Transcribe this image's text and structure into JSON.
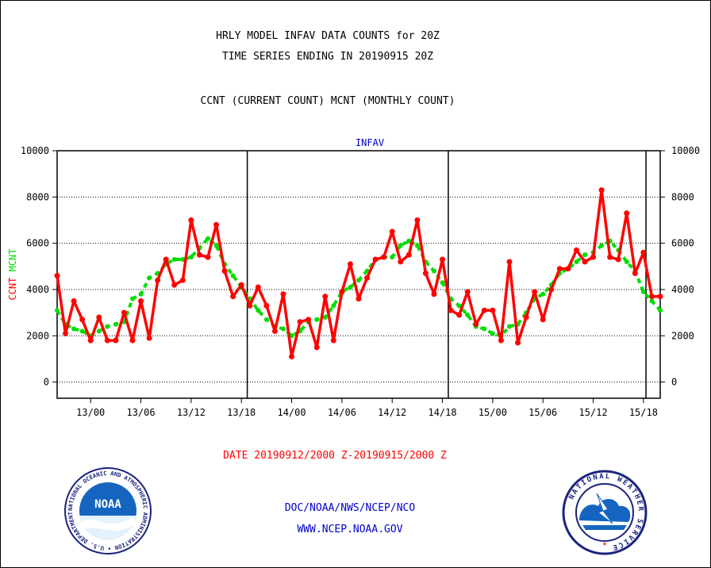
{
  "header": {
    "title_line1": "HRLY MODEL INFAV DATA COUNTS for 20Z",
    "title_line2": "TIME SERIES ENDING IN 20190915 20Z",
    "subtitle": "CCNT (CURRENT COUNT) MCNT (MONTHLY COUNT)"
  },
  "footer": {
    "date_range": "DATE 20190912/2000 Z-20190915/2000 Z",
    "agency": "DOC/NOAA/NWS/NCEP/NCO",
    "website": "WWW.NCEP.NOAA.GOV"
  },
  "logos": {
    "noaa_text": "NOAA",
    "noaa_ring": "NATIONAL OCEANIC AND ATMOSPHERIC ADMINISTRATION • U.S. DEPARTMENT OF COMMERCE •",
    "nws_ring": "NATIONAL WEATHER SERVICE"
  },
  "colors": {
    "ccnt": "#ff0000",
    "mcnt": "#00dd00",
    "title": "#0000cc",
    "date": "#ff0000",
    "footer": "#0000cc"
  },
  "chart_data": {
    "type": "line",
    "title": "INFAV",
    "ylabel_parts": [
      "CCNT",
      "MCNT"
    ],
    "ylim": [
      -700,
      10000
    ],
    "yticks": [
      0,
      2000,
      4000,
      6000,
      8000,
      10000
    ],
    "ytick_labels": [
      "0",
      "2000",
      "4000",
      "6000",
      "8000",
      "10000"
    ],
    "x_start_hour": 20,
    "x_end_hour": 92,
    "xticks": [
      24,
      30,
      36,
      42,
      48,
      54,
      60,
      66,
      72,
      78,
      84,
      90
    ],
    "xtick_labels": [
      "13/00",
      "13/06",
      "13/12",
      "13/18",
      "14/00",
      "14/06",
      "14/12",
      "14/18",
      "15/00",
      "15/06",
      "15/12",
      "15/18"
    ],
    "day_boundaries": [
      42.7,
      66.7,
      90.3
    ],
    "grid": true,
    "series": [
      {
        "name": "CCNT",
        "x": [
          20,
          21,
          22,
          23,
          24,
          25,
          26,
          27,
          28,
          29,
          30,
          31,
          32,
          33,
          34,
          35,
          36,
          37,
          38,
          39,
          40,
          41,
          42,
          43,
          44,
          45,
          46,
          47,
          48,
          49,
          50,
          51,
          52,
          53,
          54,
          55,
          56,
          57,
          58,
          59,
          60,
          61,
          62,
          63,
          64,
          65,
          66,
          67,
          68,
          69,
          70,
          71,
          72,
          73,
          74,
          75,
          76,
          77,
          78,
          79,
          80,
          81,
          82,
          83,
          84,
          85,
          86,
          87,
          88,
          89,
          90,
          91,
          92
        ],
        "values": [
          4600,
          2100,
          3500,
          2700,
          1800,
          2800,
          1800,
          1800,
          3000,
          1800,
          3500,
          1900,
          4400,
          5300,
          4200,
          4400,
          7000,
          5500,
          5400,
          6800,
          4800,
          3700,
          4200,
          3300,
          4100,
          3300,
          2200,
          3800,
          1100,
          2600,
          2700,
          1500,
          3700,
          1800,
          3900,
          5100,
          3600,
          4500,
          5300,
          5400,
          6500,
          5200,
          5500,
          7000,
          4700,
          3800,
          5300,
          3100,
          2900,
          3900,
          2500,
          3100,
          3100,
          1800,
          5200,
          1700,
          2800,
          3900,
          2700,
          4000,
          4900,
          4900,
          5700,
          5200,
          5400,
          8300,
          5400,
          5300,
          7300,
          4700,
          5600,
          3700,
          3700
        ]
      },
      {
        "name": "MCNT",
        "x": [
          20,
          21,
          22,
          23,
          24,
          25,
          26,
          27,
          28,
          29,
          30,
          31,
          32,
          33,
          34,
          35,
          36,
          37,
          38,
          39,
          40,
          41,
          42,
          43,
          44,
          45,
          46,
          47,
          48,
          49,
          50,
          51,
          52,
          53,
          54,
          55,
          56,
          57,
          58,
          59,
          60,
          61,
          62,
          63,
          64,
          65,
          66,
          67,
          68,
          69,
          70,
          71,
          72,
          73,
          74,
          75,
          76,
          77,
          78,
          79,
          80,
          81,
          82,
          83,
          84,
          85,
          86,
          87,
          88,
          89,
          90,
          91,
          92
        ],
        "values": [
          3100,
          2500,
          2300,
          2200,
          2000,
          2200,
          2400,
          2500,
          2600,
          3600,
          3800,
          4500,
          4700,
          5100,
          5300,
          5300,
          5400,
          5800,
          6200,
          5900,
          5100,
          4600,
          4100,
          3600,
          3100,
          2700,
          2400,
          2300,
          2000,
          2200,
          2600,
          2700,
          2800,
          3300,
          3900,
          4100,
          4400,
          4800,
          5300,
          5400,
          5400,
          5900,
          6100,
          5900,
          5200,
          4800,
          4300,
          3600,
          3300,
          2900,
          2400,
          2300,
          2100,
          2000,
          2400,
          2500,
          3000,
          3600,
          3800,
          4200,
          4700,
          4900,
          5200,
          5500,
          5600,
          5900,
          6100,
          5700,
          5200,
          4800,
          3900,
          3500,
          3100
        ]
      }
    ]
  }
}
